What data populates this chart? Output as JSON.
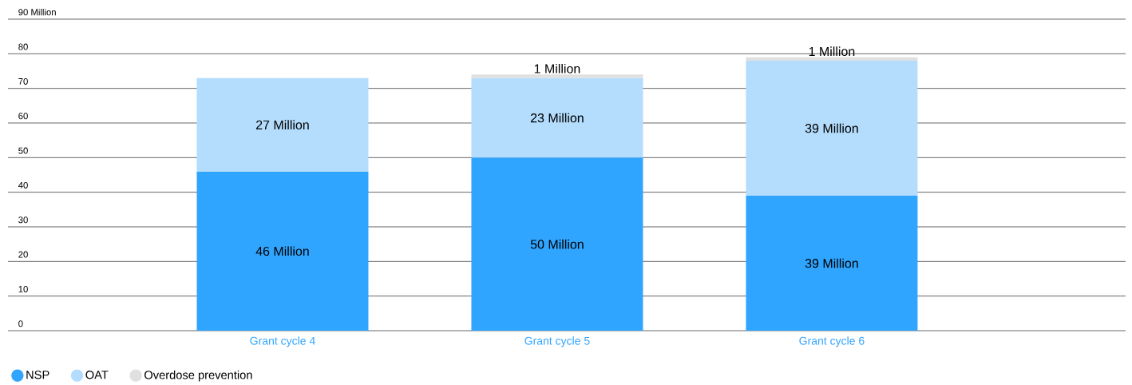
{
  "chart_data": {
    "type": "bar",
    "stacked": true,
    "categories": [
      "Grant cycle 4",
      "Grant cycle 5",
      "Grant cycle 6"
    ],
    "series": [
      {
        "name": "NSP",
        "color": "#30a5ff",
        "values": [
          46,
          50,
          39
        ],
        "value_labels": [
          "46 Million",
          "50 Million",
          "39 Million"
        ]
      },
      {
        "name": "OAT",
        "color": "#b3dcfd",
        "values": [
          27,
          23,
          39
        ],
        "value_labels": [
          "27 Million",
          "23 Million",
          "39 Million"
        ]
      },
      {
        "name": "Overdose prevention",
        "color": "#e0e0e0",
        "values": [
          null,
          1,
          1
        ],
        "value_labels": [
          null,
          "1 Million",
          "1 Million"
        ]
      }
    ],
    "ylim": [
      0,
      90
    ],
    "yticks": [
      0,
      10,
      20,
      30,
      40,
      50,
      60,
      70,
      80,
      {
        "value": 90,
        "label": "90 Million"
      }
    ],
    "grid": "y",
    "legend": "bottom left"
  }
}
